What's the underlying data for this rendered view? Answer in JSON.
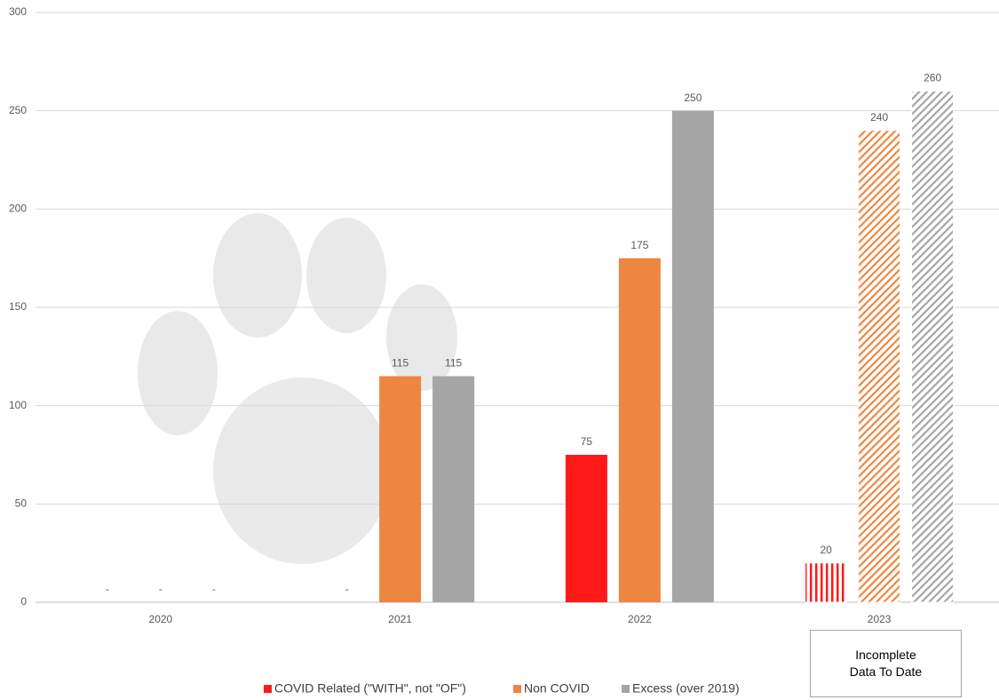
{
  "chart_data": {
    "type": "bar",
    "categories": [
      "2020",
      "2021",
      "2022",
      "2023"
    ],
    "series": [
      {
        "name": "COVID Related (\"WITH\", not \"OF\")",
        "color": "#ff1a1a",
        "values": [
          0,
          0,
          75,
          20
        ],
        "value_labels": [
          "-",
          "-",
          "75",
          "20"
        ]
      },
      {
        "name": "Non COVID",
        "color": "#ed8640",
        "values": [
          0,
          115,
          175,
          240
        ],
        "value_labels": [
          "-",
          "115",
          "175",
          "240"
        ]
      },
      {
        "name": "Excess (over 2019)",
        "color": "#a5a5a5",
        "values": [
          0,
          115,
          250,
          260
        ],
        "value_labels": [
          "-",
          "115",
          "250",
          "260"
        ]
      }
    ],
    "hatched": [
      false,
      false,
      false,
      true
    ],
    "annotation": "Incomplete Data To Date",
    "ylim": [
      0,
      300
    ],
    "yticks": [
      0,
      50,
      100,
      150,
      200,
      250,
      300
    ],
    "grid": true,
    "legend": "bottom"
  }
}
